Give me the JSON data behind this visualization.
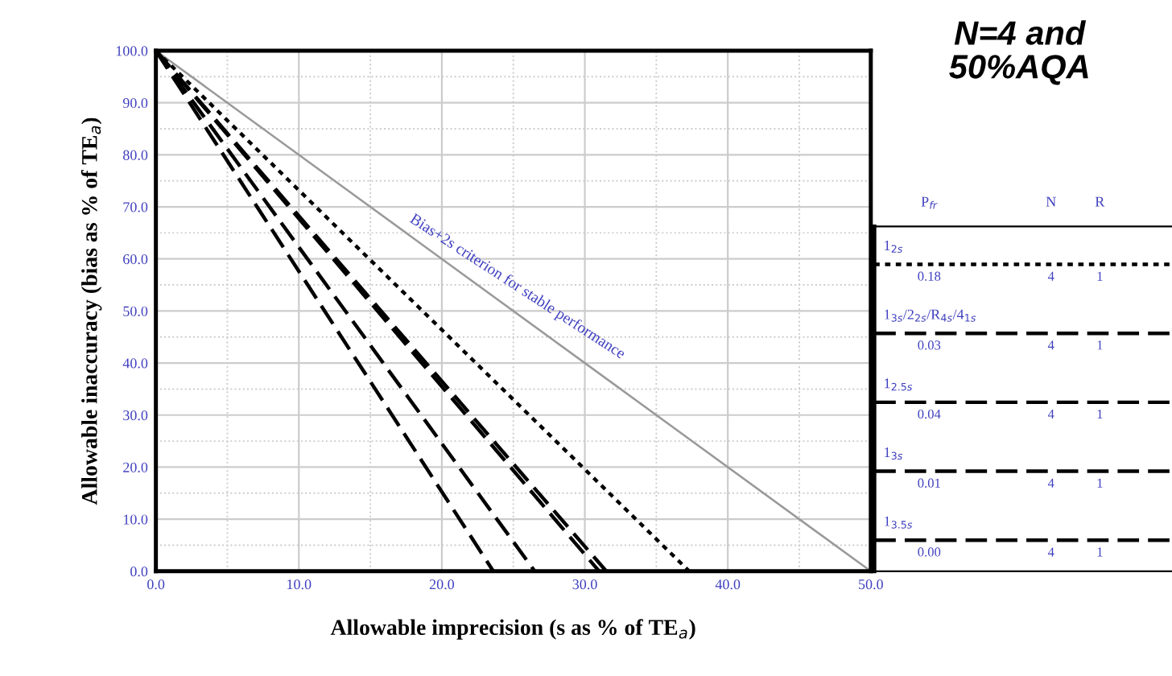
{
  "chart_data": [
    {
      "type": "line",
      "xlabel": "Allowable imprecision (s as % of TE$_{a}$)",
      "ylabel": "Allowable inaccuracy (bias as % of TE$_{a}$)",
      "xlim": [
        0,
        50
      ],
      "ylim": [
        0,
        100
      ],
      "xticks": [
        {
          "value": 0,
          "label": "0.0"
        },
        {
          "value": 10,
          "label": "10.0"
        },
        {
          "value": 20,
          "label": "20.0"
        },
        {
          "value": 30,
          "label": "30.0"
        },
        {
          "value": 40,
          "label": "40.0"
        },
        {
          "value": 50,
          "label": "50.0"
        }
      ],
      "yticks": [
        {
          "value": 0,
          "label": "0.0"
        },
        {
          "value": 10,
          "label": "10.0"
        },
        {
          "value": 20,
          "label": "20.0"
        },
        {
          "value": 30,
          "label": "30.0"
        },
        {
          "value": 40,
          "label": "40.0"
        },
        {
          "value": 50,
          "label": "50.0"
        },
        {
          "value": 60,
          "label": "60.0"
        },
        {
          "value": 70,
          "label": "70.0"
        },
        {
          "value": 80,
          "label": "80.0"
        },
        {
          "value": 90,
          "label": "90.0"
        },
        {
          "value": 100,
          "label": "100.0"
        }
      ],
      "grid": true,
      "legend": "right",
      "marker": "none",
      "series": [
        {
          "color": "#999999",
          "line_style": "solid",
          "x": [
            0,
            50
          ],
          "values": [
            100,
            0
          ]
        },
        {
          "name": "1$_{2s}$",
          "color": "#000000",
          "line_style": "dotted",
          "x": [
            0,
            37.3
          ],
          "values": [
            100,
            0
          ]
        },
        {
          "name": "1$_{3s}$/2$_{2s}$/R$_{4s}$/4$_{1s}$",
          "color": "#000000",
          "line_style": "dashed",
          "x": [
            0,
            31.5
          ],
          "values": [
            100,
            0
          ]
        },
        {
          "name": "1$_{2.5s}$",
          "color": "#000000",
          "line_style": "dashed",
          "x": [
            0,
            31.0
          ],
          "values": [
            100,
            0
          ]
        },
        {
          "name": "1$_{3s}$",
          "color": "#000000",
          "line_style": "dashed",
          "x": [
            0,
            26.5
          ],
          "values": [
            100,
            0
          ]
        },
        {
          "name": "1$_{3.5s}$",
          "color": "#000000",
          "line_style": "dashed",
          "x": [
            0,
            23.6
          ],
          "values": [
            100,
            0
          ]
        }
      ],
      "annotations": [
        {
          "text": "Bias+2s criterion for stable performance",
          "x": 25,
          "y": 50
        }
      ]
    },
    {
      "type": "other",
      "title": "N=4 and\n50%AQA",
      "annotations": [
        "P$_{fr}$",
        "N",
        "R",
        "0.18",
        "4",
        "1",
        "0.03",
        "4",
        "1",
        "0.04",
        "4",
        "1",
        "0.01",
        "4",
        "1",
        "0.00",
        "4",
        "1"
      ]
    }
  ]
}
